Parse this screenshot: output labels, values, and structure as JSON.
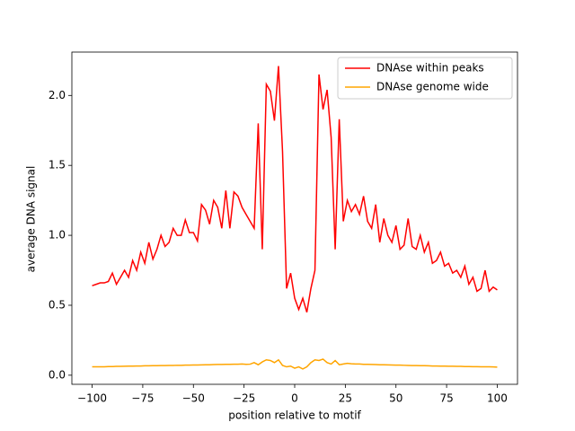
{
  "chart_data": {
    "type": "line",
    "xlabel": "position relative to motif",
    "ylabel": "average DNA signal",
    "x": [
      -100,
      -98,
      -96,
      -94,
      -92,
      -90,
      -88,
      -86,
      -84,
      -82,
      -80,
      -78,
      -76,
      -74,
      -72,
      -70,
      -68,
      -66,
      -64,
      -62,
      -60,
      -58,
      -56,
      -54,
      -52,
      -50,
      -48,
      -46,
      -44,
      -42,
      -40,
      -38,
      -36,
      -34,
      -32,
      -30,
      -28,
      -26,
      -24,
      -22,
      -20,
      -18,
      -16,
      -14,
      -12,
      -10,
      -8,
      -6,
      -4,
      -2,
      0,
      2,
      4,
      6,
      8,
      10,
      12,
      14,
      16,
      18,
      20,
      22,
      24,
      26,
      28,
      30,
      32,
      34,
      36,
      38,
      40,
      42,
      44,
      46,
      48,
      50,
      52,
      54,
      56,
      58,
      60,
      62,
      64,
      66,
      68,
      70,
      72,
      74,
      76,
      78,
      80,
      82,
      84,
      86,
      88,
      90,
      92,
      94,
      96,
      98,
      100
    ],
    "series": [
      {
        "name": "DNAse within peaks",
        "color": "#ff0000",
        "values": [
          0.64,
          0.65,
          0.66,
          0.66,
          0.67,
          0.73,
          0.65,
          0.7,
          0.75,
          0.7,
          0.82,
          0.75,
          0.88,
          0.8,
          0.95,
          0.83,
          0.9,
          1.0,
          0.92,
          0.95,
          1.05,
          1.0,
          1.0,
          1.11,
          1.02,
          1.02,
          0.96,
          1.22,
          1.18,
          1.08,
          1.25,
          1.2,
          1.05,
          1.32,
          1.05,
          1.31,
          1.28,
          1.2,
          1.15,
          1.1,
          1.05,
          1.8,
          0.9,
          2.08,
          2.03,
          1.82,
          2.21,
          1.6,
          0.62,
          0.73,
          0.55,
          0.47,
          0.55,
          0.45,
          0.62,
          0.75,
          2.15,
          1.9,
          2.04,
          1.7,
          0.9,
          1.83,
          1.1,
          1.25,
          1.17,
          1.22,
          1.15,
          1.28,
          1.1,
          1.05,
          1.22,
          0.95,
          1.12,
          1.0,
          0.95,
          1.07,
          0.9,
          0.93,
          1.12,
          0.92,
          0.9,
          1.0,
          0.88,
          0.95,
          0.8,
          0.82,
          0.88,
          0.78,
          0.8,
          0.73,
          0.75,
          0.7,
          0.78,
          0.65,
          0.7,
          0.6,
          0.62,
          0.75,
          0.6,
          0.63,
          0.61
        ]
      },
      {
        "name": "DNAse genome wide",
        "color": "#ffa500",
        "values": [
          0.06,
          0.06,
          0.06,
          0.06,
          0.062,
          0.062,
          0.063,
          0.063,
          0.064,
          0.065,
          0.065,
          0.066,
          0.066,
          0.067,
          0.067,
          0.068,
          0.068,
          0.069,
          0.069,
          0.07,
          0.07,
          0.071,
          0.071,
          0.072,
          0.072,
          0.073,
          0.073,
          0.074,
          0.075,
          0.075,
          0.076,
          0.077,
          0.077,
          0.078,
          0.078,
          0.079,
          0.079,
          0.08,
          0.078,
          0.079,
          0.09,
          0.075,
          0.095,
          0.11,
          0.105,
          0.09,
          0.11,
          0.07,
          0.06,
          0.065,
          0.05,
          0.06,
          0.045,
          0.06,
          0.09,
          0.11,
          0.105,
          0.115,
          0.09,
          0.08,
          0.105,
          0.075,
          0.08,
          0.085,
          0.082,
          0.08,
          0.08,
          0.078,
          0.078,
          0.077,
          0.076,
          0.075,
          0.075,
          0.074,
          0.073,
          0.072,
          0.072,
          0.071,
          0.07,
          0.069,
          0.069,
          0.068,
          0.068,
          0.067,
          0.066,
          0.066,
          0.065,
          0.065,
          0.064,
          0.064,
          0.063,
          0.063,
          0.062,
          0.062,
          0.061,
          0.061,
          0.06,
          0.06,
          0.06,
          0.059,
          0.058
        ]
      }
    ],
    "xlim": [
      -110,
      110
    ],
    "ylim": [
      -0.065,
      2.31
    ],
    "xticks": [
      {
        "value": -100,
        "label": "−100"
      },
      {
        "value": -75,
        "label": "−75"
      },
      {
        "value": -50,
        "label": "−50"
      },
      {
        "value": -25,
        "label": "−25"
      },
      0,
      25,
      50,
      75,
      100
    ],
    "yticks": [
      {
        "value": 0,
        "label": "0.0"
      },
      {
        "value": 0.5,
        "label": "0.5"
      },
      {
        "value": 1,
        "label": "1.0"
      },
      {
        "value": 1.5,
        "label": "1.5"
      },
      {
        "value": 2,
        "label": "2.0"
      }
    ],
    "legend": "upper right"
  }
}
